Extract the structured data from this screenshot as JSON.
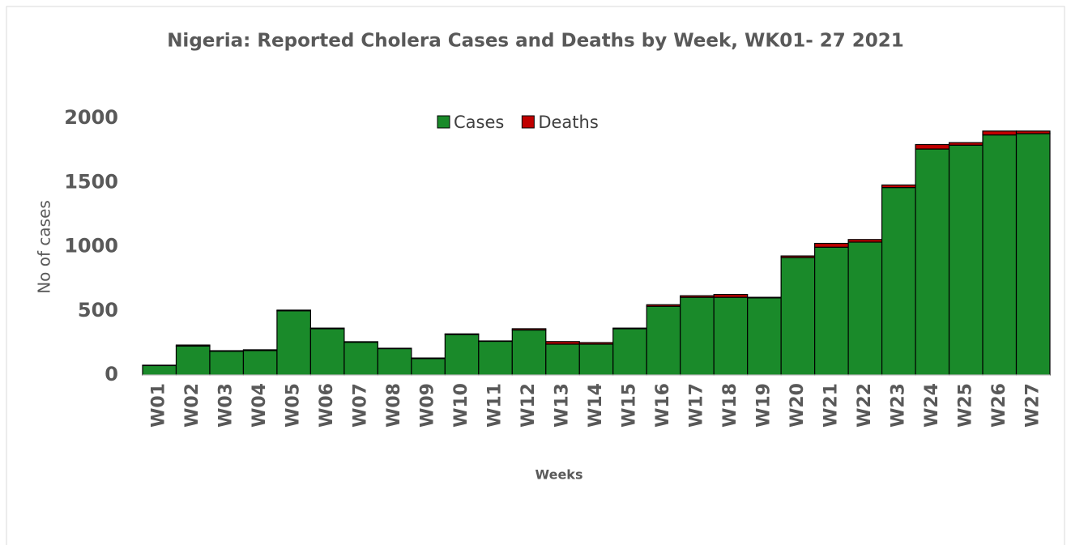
{
  "chart_data": {
    "type": "stacked_bar",
    "title": "Nigeria: Reported Cholera Cases and Deaths by Week, WK01- 27 2021",
    "y_label": "No of cases",
    "x_label": "Weeks",
    "categories": [
      "W01",
      "W02",
      "W03",
      "W04",
      "W05",
      "W06",
      "W07",
      "W08",
      "W09",
      "W10",
      "W11",
      "W12",
      "W13",
      "W14",
      "W15",
      "W16",
      "W17",
      "W18",
      "W19",
      "W20",
      "W21",
      "W22",
      "W23",
      "W24",
      "W25",
      "W26",
      "W27"
    ],
    "series": [
      {
        "name": "Cases",
        "color": "#1a8a2a",
        "values": [
          73,
          225,
          185,
          190,
          500,
          360,
          255,
          205,
          128,
          315,
          262,
          350,
          240,
          240,
          360,
          535,
          605,
          605,
          600,
          915,
          995,
          1035,
          1460,
          1760,
          1790,
          1870,
          1880
        ]
      },
      {
        "name": "Deaths",
        "color": "#c00000",
        "values": [
          3,
          8,
          4,
          6,
          5,
          5,
          4,
          3,
          4,
          5,
          3,
          10,
          20,
          12,
          5,
          12,
          12,
          22,
          5,
          12,
          30,
          20,
          20,
          35,
          20,
          30,
          20
        ]
      }
    ],
    "ylim": [
      0,
      2000
    ],
    "yticks": [
      0,
      500,
      1000,
      1500,
      2000
    ],
    "grid": false,
    "legend": "top"
  }
}
